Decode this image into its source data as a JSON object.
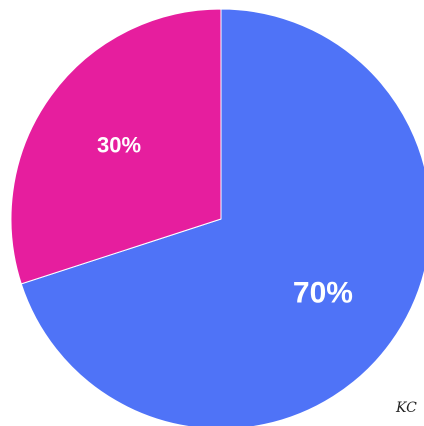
{
  "chart_data": {
    "type": "pie",
    "slices": [
      {
        "value": 70,
        "label": "70%",
        "color": "#4F73F7"
      },
      {
        "value": 30,
        "label": "30%",
        "color": "#E61E9E"
      }
    ],
    "start_angle_deg": 0,
    "direction": "clockwise"
  },
  "signature": "KC"
}
